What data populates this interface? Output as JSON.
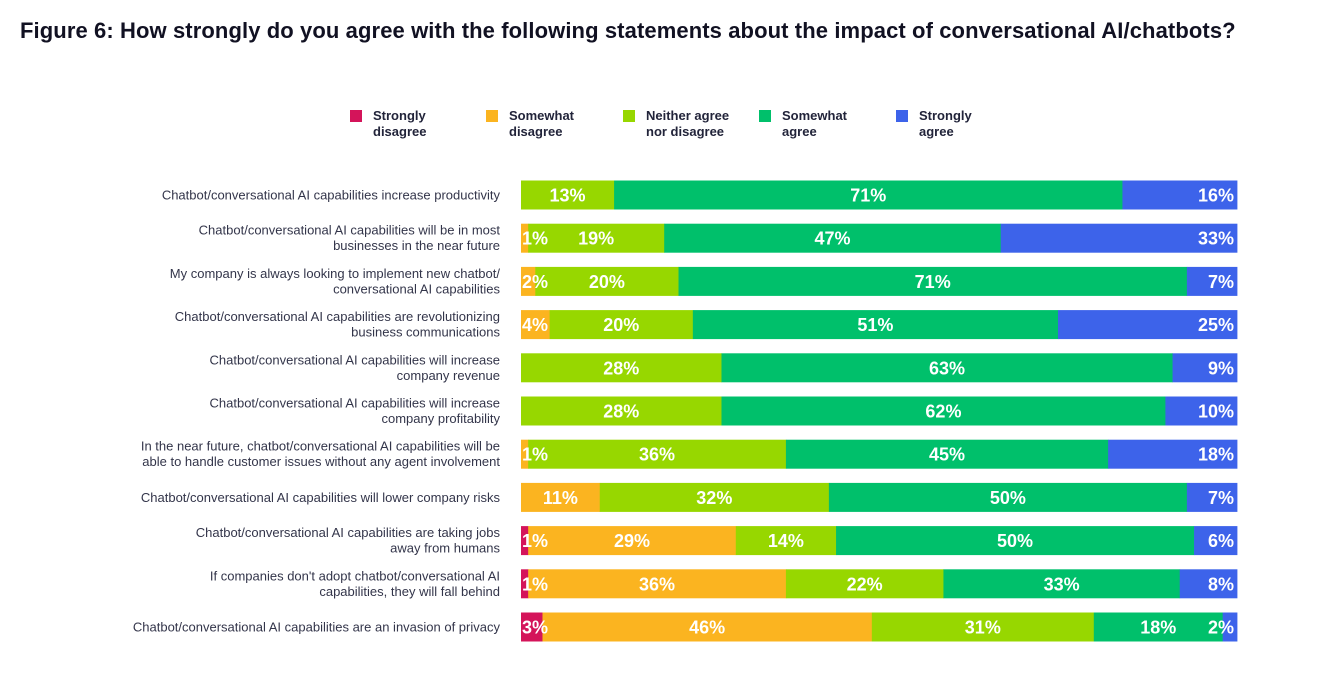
{
  "title": "Figure 6: How strongly do you agree with the following statements about the impact of conversational AI/chatbots?",
  "colors": {
    "strongly_disagree": "#d4145a",
    "somewhat_disagree": "#fbb420",
    "neither": "#97d700",
    "somewhat_agree": "#00c06b",
    "strongly_agree": "#3d63ea"
  },
  "legend": [
    {
      "label": "Strongly disagree",
      "line1": "Strongly",
      "line2": "disagree",
      "color": "#d4145a"
    },
    {
      "label": "Somewhat disagree",
      "line1": "Somewhat",
      "line2": "disagree",
      "color": "#fbb420"
    },
    {
      "label": "Neither agree nor disagree",
      "line1": "Neither agree",
      "line2": "nor disagree",
      "color": "#97d700"
    },
    {
      "label": "Somewhat agree",
      "line1": "Somewhat",
      "line2": "agree",
      "color": "#00c06b"
    },
    {
      "label": "Strongly agree",
      "line1": "Strongly",
      "line2": "agree",
      "color": "#3d63ea"
    }
  ],
  "chart_data": {
    "type": "bar",
    "orientation": "horizontal",
    "stacked": true,
    "title": "Figure 6: How strongly do you agree with the following statements about the impact of conversational AI/chatbots?",
    "xlabel": "",
    "ylabel": "",
    "xlim": [
      0,
      100
    ],
    "grid": false,
    "legend_position": "top",
    "categories": [
      [
        "Chatbot/conversational AI capabilities increase productivity"
      ],
      [
        "Chatbot/conversational AI capabilities will be in most",
        "businesses in the near future"
      ],
      [
        "My company is always looking to implement new chatbot/",
        "conversational AI capabilities"
      ],
      [
        "Chatbot/conversational AI capabilities are revolutionizing",
        "business communications"
      ],
      [
        "Chatbot/conversational AI capabilities will increase",
        "company revenue"
      ],
      [
        "Chatbot/conversational AI capabilities will increase",
        "company profitability"
      ],
      [
        "In the near future, chatbot/conversational AI capabilities will be",
        "able to handle customer issues without any agent involvement"
      ],
      [
        "Chatbot/conversational AI capabilities will lower company risks"
      ],
      [
        "Chatbot/conversational AI capabilities are taking jobs",
        "away from humans"
      ],
      [
        "If companies don't adopt chatbot/conversational AI",
        "capabilities, they will fall behind"
      ],
      [
        "Chatbot/conversational AI capabilities are an invasion of privacy"
      ]
    ],
    "series": [
      {
        "name": "Strongly disagree",
        "color": "#d4145a",
        "values": [
          0,
          0,
          0,
          0,
          0,
          0,
          0,
          0,
          1,
          1,
          3
        ]
      },
      {
        "name": "Somewhat disagree",
        "color": "#fbb420",
        "values": [
          0,
          1,
          2,
          4,
          0,
          0,
          1,
          11,
          29,
          36,
          46
        ]
      },
      {
        "name": "Neither agree nor disagree",
        "color": "#97d700",
        "values": [
          13,
          19,
          20,
          20,
          28,
          28,
          36,
          32,
          14,
          22,
          31
        ]
      },
      {
        "name": "Somewhat agree",
        "color": "#00c06b",
        "values": [
          71,
          47,
          71,
          51,
          63,
          62,
          45,
          50,
          50,
          33,
          18
        ]
      },
      {
        "name": "Strongly agree",
        "color": "#3d63ea",
        "values": [
          16,
          33,
          7,
          25,
          9,
          10,
          18,
          7,
          6,
          8,
          2
        ]
      }
    ],
    "value_suffix": "%"
  }
}
